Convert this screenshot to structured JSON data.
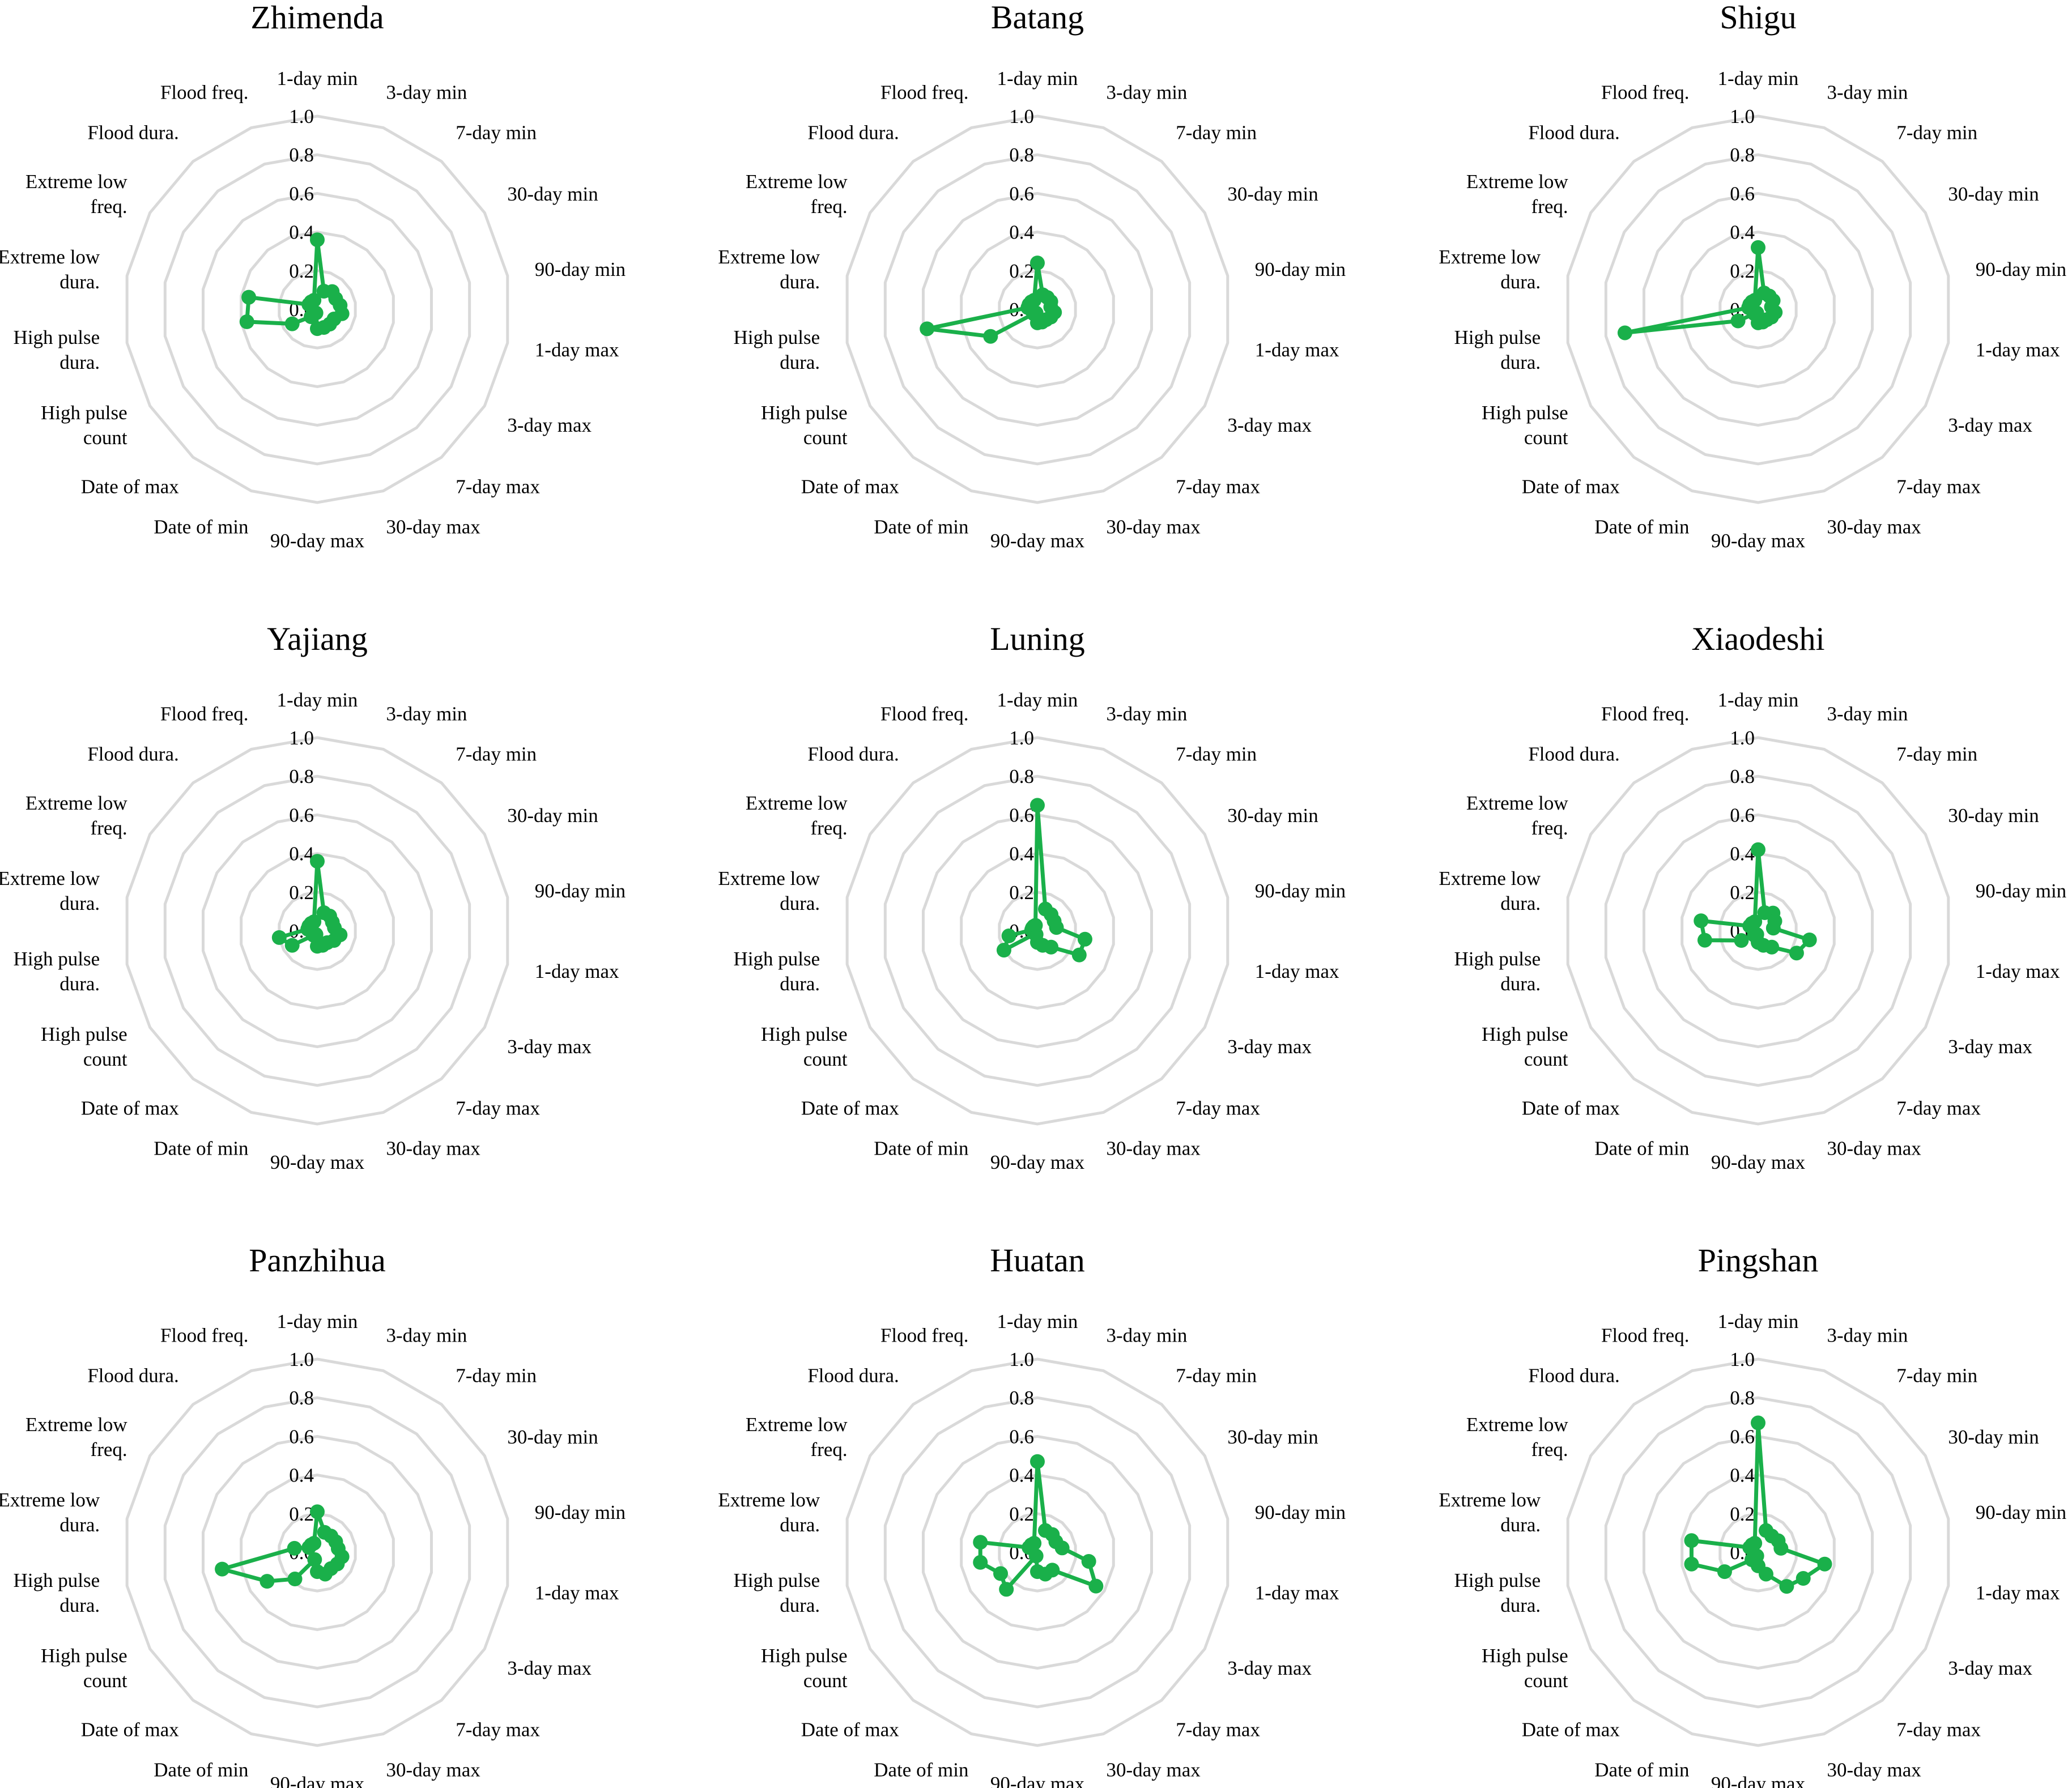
{
  "chart_data": {
    "type": "radar",
    "rmax": 1.0,
    "ticks": [
      "0.0",
      "0.2",
      "0.4",
      "0.6",
      "0.8",
      "1.0"
    ],
    "tick_values": [
      0,
      0.2,
      0.4,
      0.6,
      0.8,
      1.0
    ],
    "grid": "on",
    "color": "#1ab04a",
    "ring_color": "#d9d9d9",
    "axes": [
      [
        "1-day min"
      ],
      [
        "3-day min"
      ],
      [
        "7-day min"
      ],
      [
        "30-day min"
      ],
      [
        "90-day min"
      ],
      [
        "1-day max"
      ],
      [
        "3-day max"
      ],
      [
        "7-day max"
      ],
      [
        "30-day max"
      ],
      [
        "90-day max"
      ],
      [
        "Date of min"
      ],
      [
        "Date of max"
      ],
      [
        "High pulse",
        "count"
      ],
      [
        "High pulse",
        "dura."
      ],
      [
        "Extreme low",
        "dura."
      ],
      [
        "Extreme low",
        "freq."
      ],
      [
        "Flood dura."
      ],
      [
        "Flood freq."
      ]
    ],
    "panels": [
      {
        "title": "Zhimenda",
        "values": [
          0.36,
          0.1,
          0.12,
          0.11,
          0.12,
          0.13,
          0.1,
          0.1,
          0.1,
          0.1,
          0.02,
          0.05,
          0.15,
          0.37,
          0.36,
          0.05,
          0.05,
          0.05
        ]
      },
      {
        "title": "Batang",
        "values": [
          0.24,
          0.08,
          0.08,
          0.08,
          0.07,
          0.09,
          0.08,
          0.07,
          0.07,
          0.07,
          0.02,
          0.03,
          0.28,
          0.58,
          0.05,
          0.05,
          0.05,
          0.05
        ]
      },
      {
        "title": "Shigu",
        "values": [
          0.32,
          0.09,
          0.09,
          0.09,
          0.07,
          0.09,
          0.08,
          0.07,
          0.07,
          0.07,
          0.02,
          0.03,
          0.12,
          0.7,
          0.05,
          0.05,
          0.05,
          0.05
        ]
      },
      {
        "title": "Yajiang",
        "values": [
          0.36,
          0.1,
          0.1,
          0.09,
          0.09,
          0.12,
          0.1,
          0.08,
          0.08,
          0.08,
          0.02,
          0.03,
          0.15,
          0.2,
          0.05,
          0.05,
          0.05,
          0.05
        ]
      },
      {
        "title": "Luning",
        "values": [
          0.65,
          0.12,
          0.11,
          0.1,
          0.1,
          0.25,
          0.25,
          0.11,
          0.08,
          0.06,
          0.02,
          0.02,
          0.2,
          0.15,
          0.03,
          0.03,
          0.03,
          0.03
        ]
      },
      {
        "title": "Xiaodeshi",
        "values": [
          0.42,
          0.1,
          0.12,
          0.1,
          0.08,
          0.27,
          0.23,
          0.11,
          0.08,
          0.06,
          0.02,
          0.03,
          0.1,
          0.28,
          0.3,
          0.05,
          0.05,
          0.05
        ]
      },
      {
        "title": "Panzhihua",
        "values": [
          0.21,
          0.11,
          0.11,
          0.11,
          0.11,
          0.13,
          0.12,
          0.11,
          0.12,
          0.1,
          0.04,
          0.18,
          0.3,
          0.5,
          0.12,
          0.05,
          0.05,
          0.05
        ]
      },
      {
        "title": "Huatan",
        "values": [
          0.47,
          0.12,
          0.12,
          0.11,
          0.13,
          0.27,
          0.35,
          0.12,
          0.12,
          0.1,
          0.02,
          0.25,
          0.22,
          0.3,
          0.3,
          0.05,
          0.05,
          0.05
        ]
      },
      {
        "title": "Pingshan",
        "values": [
          0.67,
          0.12,
          0.11,
          0.12,
          0.12,
          0.35,
          0.27,
          0.23,
          0.12,
          0.07,
          0.02,
          0.05,
          0.2,
          0.35,
          0.35,
          0.05,
          0.05,
          0.05
        ]
      }
    ]
  }
}
